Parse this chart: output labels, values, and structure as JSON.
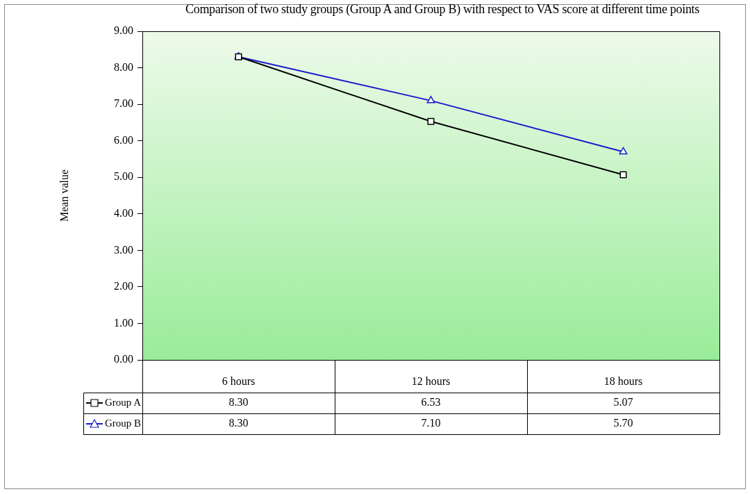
{
  "chart_data": {
    "type": "line",
    "title": "Comparison of two study groups (Group A and Group B) with respect to VAS score at different time points",
    "ylabel": "Mean value",
    "categories": [
      "6 hours",
      "12 hours",
      "18 hours"
    ],
    "series": [
      {
        "name": "Group A",
        "color": "#000000",
        "marker": "square",
        "values": [
          8.3,
          6.53,
          5.07
        ],
        "value_labels": [
          "8.30",
          "6.53",
          "5.07"
        ]
      },
      {
        "name": "Group B",
        "color": "#1a1acc",
        "marker": "triangle",
        "values": [
          8.3,
          7.1,
          5.7
        ],
        "value_labels": [
          "8.30",
          "7.10",
          "5.70"
        ]
      }
    ],
    "ylim": [
      0,
      9
    ],
    "yticks": [
      {
        "value": 0,
        "label": "0.00"
      },
      {
        "value": 1,
        "label": "1.00"
      },
      {
        "value": 2,
        "label": "2.00"
      },
      {
        "value": 3,
        "label": "3.00"
      },
      {
        "value": 4,
        "label": "4.00"
      },
      {
        "value": 5,
        "label": "5.00"
      },
      {
        "value": 6,
        "label": "6.00"
      },
      {
        "value": 7,
        "label": "7.00"
      },
      {
        "value": 8,
        "label": "8.00"
      },
      {
        "value": 9,
        "label": "9.00"
      }
    ],
    "grid": false,
    "legend": "bottom left",
    "line_style": "solid"
  }
}
